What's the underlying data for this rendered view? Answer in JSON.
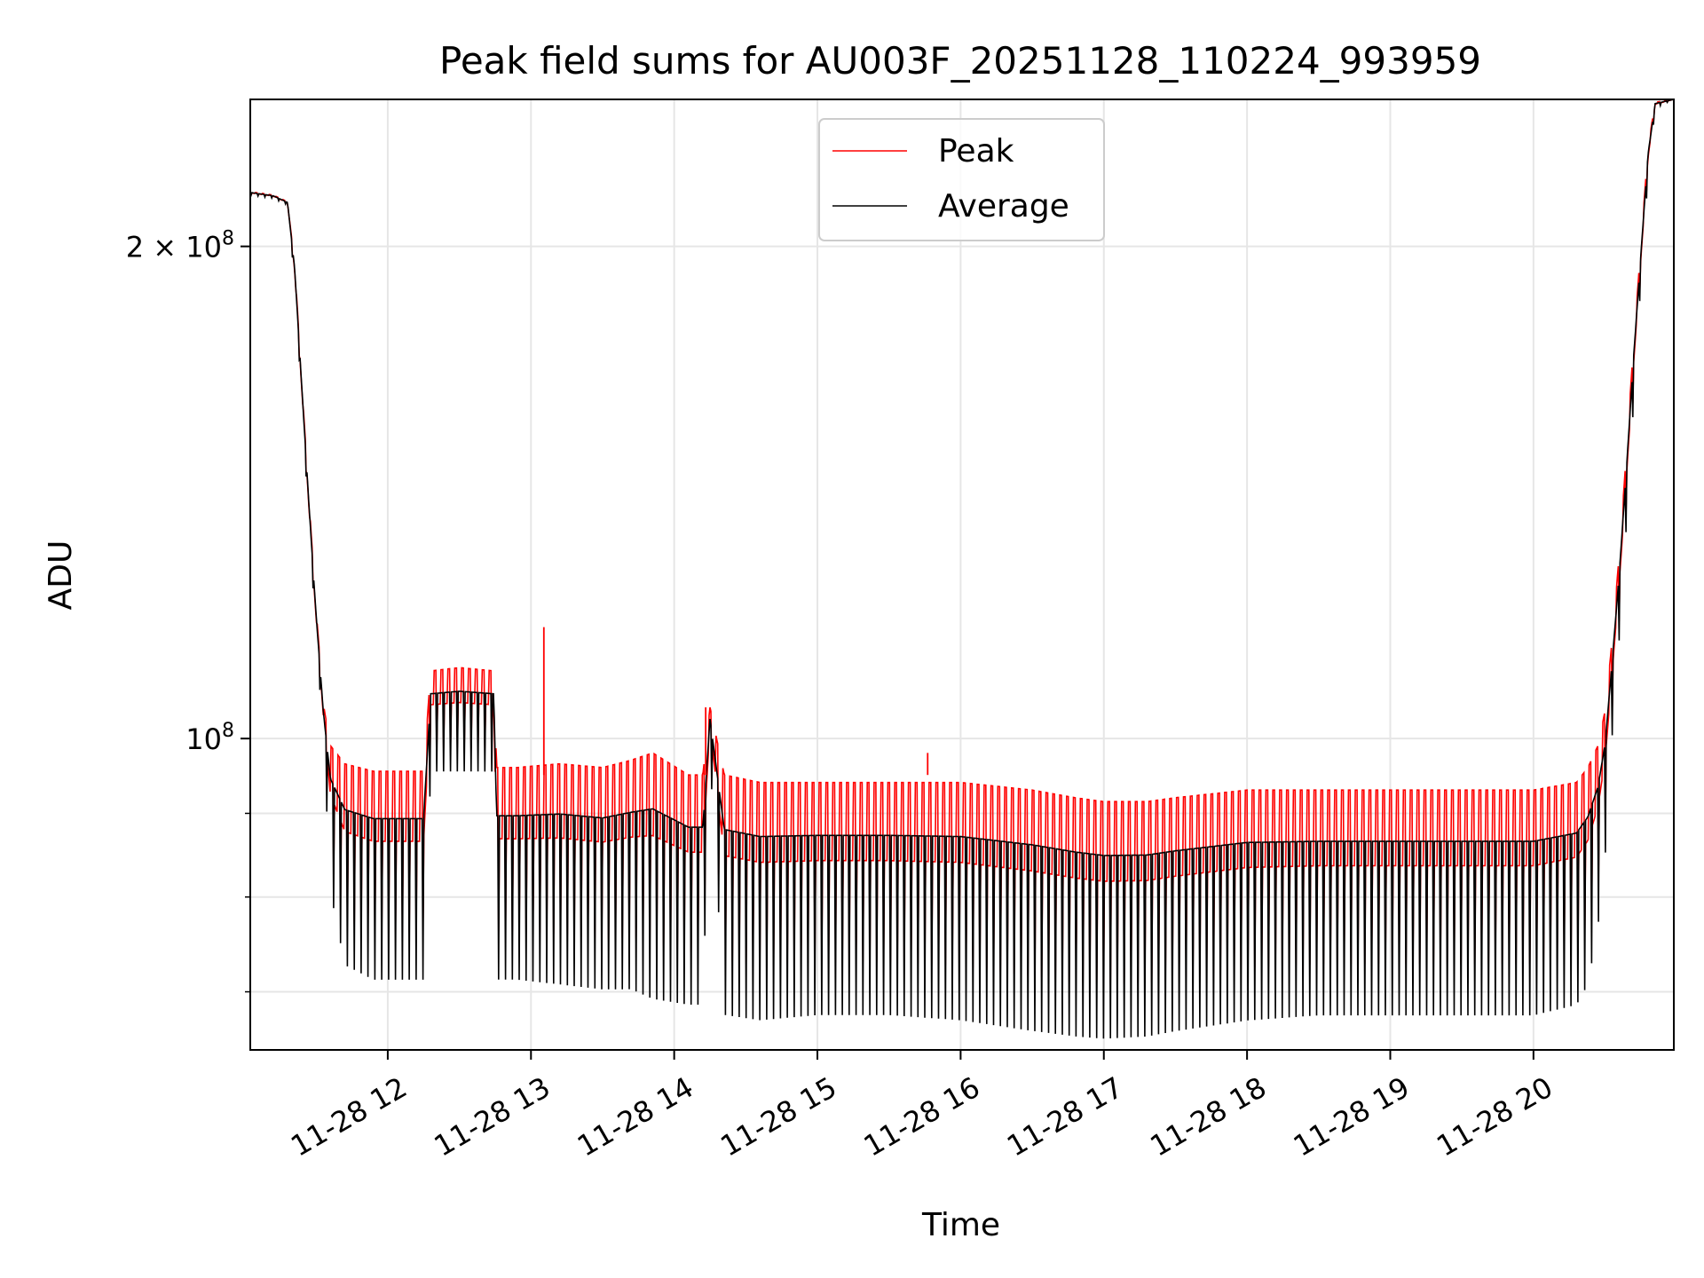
{
  "chart_data": {
    "type": "line",
    "title": "Peak field sums for AU003F_20251128_110224_993959",
    "xlabel": "Time",
    "ylabel": "ADU",
    "yscale": "log",
    "grid": true,
    "legend_position": "top-center",
    "xlim_hours": [
      11.04,
      20.98
    ],
    "ylim": [
      64500000,
      246000000
    ],
    "x_ticks": [
      {
        "value": 12,
        "label": "11-28 12"
      },
      {
        "value": 13,
        "label": "11-28 13"
      },
      {
        "value": 14,
        "label": "11-28 14"
      },
      {
        "value": 15,
        "label": "11-28 15"
      },
      {
        "value": 16,
        "label": "11-28 16"
      },
      {
        "value": 17,
        "label": "11-28 17"
      },
      {
        "value": 18,
        "label": "11-28 18"
      },
      {
        "value": 19,
        "label": "11-28 19"
      },
      {
        "value": 20,
        "label": "11-28 20"
      }
    ],
    "y_major_ticks": [
      {
        "value": 100000000,
        "base": "10",
        "exp": "8",
        "mult": ""
      },
      {
        "value": 200000000,
        "base": "10",
        "exp": "8",
        "mult": "2 × "
      }
    ],
    "y_minor_ticks": [
      70000000,
      80000000,
      90000000
    ],
    "series": [
      {
        "name": "Peak",
        "color": "#ff0000",
        "description": "upper envelope of oscillating field sums",
        "x_hours": [
          11.04,
          11.2,
          11.3,
          11.35,
          11.4,
          11.45,
          11.5,
          11.55,
          11.6,
          11.7,
          11.9,
          12.25,
          12.3,
          12.5,
          12.74,
          12.76,
          12.9,
          13.2,
          13.5,
          13.7,
          13.85,
          14.1,
          14.2,
          14.25,
          14.35,
          14.6,
          15.0,
          15.5,
          16.0,
          16.5,
          16.8,
          17.0,
          17.3,
          17.5,
          18.0,
          18.5,
          19.0,
          19.5,
          20.0,
          20.3,
          20.38,
          20.45,
          20.5,
          20.55,
          20.6,
          20.65,
          20.7,
          20.75,
          20.8,
          20.85,
          20.98
        ],
        "values": [
          216000000,
          215000000,
          213000000,
          195000000,
          165000000,
          140000000,
          120000000,
          105000000,
          99000000,
          96500000,
          95500000,
          95500000,
          110000000,
          110500000,
          110000000,
          96000000,
          96000000,
          96500000,
          96000000,
          97000000,
          98000000,
          95000000,
          95000000,
          104500000,
          95000000,
          94000000,
          94000000,
          94000000,
          94000000,
          93000000,
          92000000,
          91500000,
          91500000,
          92000000,
          93000000,
          93000000,
          93000000,
          93000000,
          93000000,
          94000000,
          96000000,
          99000000,
          104000000,
          115000000,
          130000000,
          150000000,
          175000000,
          200000000,
          230000000,
          245000000,
          246000000
        ]
      },
      {
        "name": "Average",
        "color": "#000000",
        "description": "lower envelope of oscillating field sums",
        "x_hours": [
          11.04,
          11.2,
          11.3,
          11.35,
          11.4,
          11.45,
          11.5,
          11.55,
          11.6,
          11.7,
          11.9,
          12.25,
          12.3,
          12.5,
          12.74,
          12.76,
          12.9,
          13.2,
          13.5,
          13.7,
          13.85,
          14.1,
          14.2,
          14.25,
          14.35,
          14.6,
          15.0,
          15.5,
          16.0,
          16.5,
          16.8,
          17.0,
          17.3,
          17.5,
          18.0,
          18.5,
          19.0,
          19.5,
          20.0,
          20.3,
          20.38,
          20.45,
          20.5,
          20.55,
          20.6,
          20.65,
          20.7,
          20.75,
          20.8,
          20.85,
          20.98
        ],
        "values": [
          215000000,
          214000000,
          212000000,
          190000000,
          160000000,
          135000000,
          115000000,
          100000000,
          80000000,
          72000000,
          70500000,
          70500000,
          95000000,
          95000000,
          95000000,
          70500000,
          70500000,
          70000000,
          69500000,
          69500000,
          68500000,
          68000000,
          68000000,
          97000000,
          67000000,
          66500000,
          67000000,
          67000000,
          66500000,
          65500000,
          65000000,
          64800000,
          65000000,
          65500000,
          66500000,
          67000000,
          67000000,
          67000000,
          67000000,
          68000000,
          70000000,
          76000000,
          84000000,
          100000000,
          115000000,
          135000000,
          160000000,
          190000000,
          220000000,
          243000000,
          246000000
        ]
      }
    ]
  }
}
